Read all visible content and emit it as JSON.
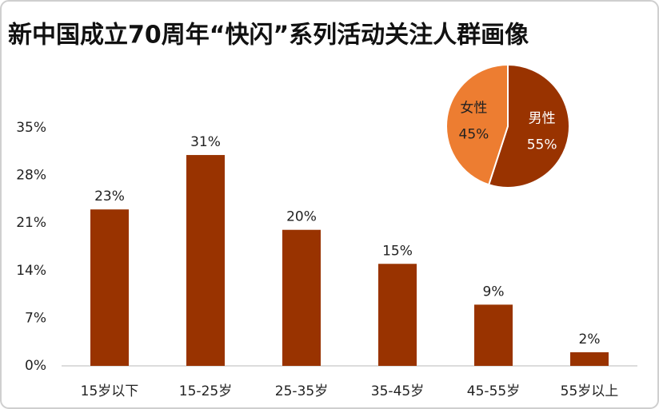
{
  "chart_data": [
    {
      "type": "bar",
      "title": "新中国成立70周年“快闪”系列活动关注人群画像",
      "categories": [
        "15岁以下",
        "15-25岁",
        "25-35岁",
        "35-45岁",
        "45-55岁",
        "55岁以上"
      ],
      "values": [
        23,
        31,
        20,
        15,
        9,
        2
      ],
      "value_labels": [
        "23%",
        "31%",
        "20%",
        "15%",
        "9%",
        "2%"
      ],
      "color": "#993300",
      "ylim": [
        0,
        35
      ],
      "yticks": [
        {
          "value": 0,
          "label": "0%"
        },
        {
          "value": 7,
          "label": "7%"
        },
        {
          "value": 14,
          "label": "14%"
        },
        {
          "value": 21,
          "label": "21%"
        },
        {
          "value": 28,
          "label": "28%"
        },
        {
          "value": 35,
          "label": "35%"
        }
      ]
    },
    {
      "type": "pie",
      "categories": [
        "男性",
        "女性"
      ],
      "values": [
        55,
        45
      ],
      "value_labels": [
        "55%",
        "45%"
      ],
      "colors": [
        "#993300",
        "#ed7d31"
      ]
    }
  ]
}
